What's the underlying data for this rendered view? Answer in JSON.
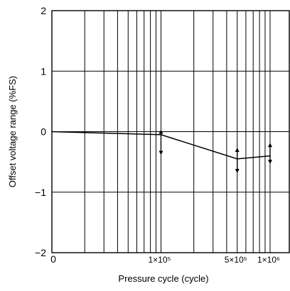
{
  "chart_data": {
    "type": "line",
    "title": "",
    "xlabel": "Pressure cycle (cycle)",
    "ylabel": "Offset voltage range (%FS)",
    "x_scale": "log",
    "x_range": [
      10000,
      1500000
    ],
    "ylim": [
      -2,
      2
    ],
    "y_ticks": [
      2,
      1,
      0,
      -1,
      -2
    ],
    "y_tick_labels": [
      "2",
      "1",
      "0",
      "−1",
      "−2"
    ],
    "x_tick_labels": [
      {
        "value": 10000,
        "label": "0"
      },
      {
        "value": 100000,
        "label": "1×10⁵"
      },
      {
        "value": 500000,
        "label": "5×10⁵"
      },
      {
        "value": 1000000,
        "label": "1×10⁶"
      }
    ],
    "grid": true,
    "series": [
      {
        "x": [
          10000,
          100000,
          500000,
          1000000
        ],
        "y": [
          0,
          -0.05,
          -0.45,
          -0.4
        ]
      }
    ],
    "range_arrows": [
      {
        "x": 100000,
        "y_low": -0.35,
        "y_high": 0.0
      },
      {
        "x": 500000,
        "y_low": -0.65,
        "y_high": -0.3
      },
      {
        "x": 1000000,
        "y_low": -0.5,
        "y_high": -0.22
      }
    ],
    "colors": {
      "line": "#000000",
      "grid": "#000000",
      "background": "#ffffff"
    }
  }
}
